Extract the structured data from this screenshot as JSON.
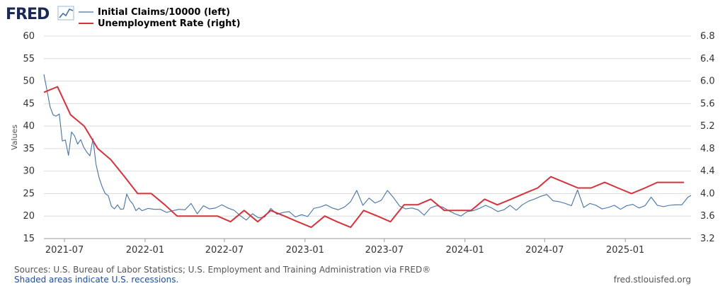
{
  "logo": {
    "text": "FRED"
  },
  "chart_data": {
    "type": "line",
    "xlabel": "",
    "ylabel": "Values",
    "x_ticks": [
      "2021-07",
      "2022-01",
      "2022-07",
      "2023-01",
      "2023-07",
      "2024-01",
      "2024-07",
      "2025-01"
    ],
    "x_range": [
      "2021-05-15",
      "2025-05-31"
    ],
    "yleft": {
      "ticks": [
        "15",
        "20",
        "25",
        "30",
        "35",
        "40",
        "45",
        "50",
        "55",
        "60"
      ],
      "lim": [
        15,
        60
      ]
    },
    "yright": {
      "ticks": [
        "3.2",
        "3.6",
        "4.0",
        "4.4",
        "4.8",
        "5.2",
        "5.6",
        "6.0",
        "6.4",
        "6.8"
      ],
      "lim": [
        3.2,
        6.8
      ]
    },
    "grid": true,
    "legend": "top-left",
    "series": [
      {
        "name": "Initial Claims/10000 (left)",
        "axis": "left",
        "color": "#4572a7",
        "x": [
          "2021-05-15",
          "2021-05-22",
          "2021-05-29",
          "2021-06-05",
          "2021-06-12",
          "2021-06-19",
          "2021-06-26",
          "2021-07-03",
          "2021-07-10",
          "2021-07-17",
          "2021-07-24",
          "2021-07-31",
          "2021-08-07",
          "2021-08-14",
          "2021-08-21",
          "2021-08-28",
          "2021-09-04",
          "2021-09-11",
          "2021-09-18",
          "2021-09-25",
          "2021-10-02",
          "2021-10-09",
          "2021-10-16",
          "2021-10-23",
          "2021-10-30",
          "2021-11-06",
          "2021-11-13",
          "2021-11-20",
          "2021-11-27",
          "2021-12-04",
          "2021-12-11",
          "2021-12-18",
          "2021-12-25",
          "2022-01-08",
          "2022-01-22",
          "2022-02-05",
          "2022-02-19",
          "2022-03-05",
          "2022-03-19",
          "2022-04-02",
          "2022-04-16",
          "2022-04-30",
          "2022-05-14",
          "2022-05-28",
          "2022-06-11",
          "2022-06-25",
          "2022-07-09",
          "2022-07-23",
          "2022-08-06",
          "2022-08-20",
          "2022-09-03",
          "2022-09-17",
          "2022-10-01",
          "2022-10-15",
          "2022-10-29",
          "2022-11-12",
          "2022-11-26",
          "2022-12-10",
          "2022-12-24",
          "2023-01-07",
          "2023-01-21",
          "2023-02-04",
          "2023-02-18",
          "2023-03-04",
          "2023-03-18",
          "2023-04-01",
          "2023-04-15",
          "2023-04-29",
          "2023-05-13",
          "2023-05-27",
          "2023-06-10",
          "2023-06-24",
          "2023-07-08",
          "2023-07-22",
          "2023-08-05",
          "2023-08-19",
          "2023-09-02",
          "2023-09-16",
          "2023-09-30",
          "2023-10-14",
          "2023-10-28",
          "2023-11-11",
          "2023-11-25",
          "2023-12-09",
          "2023-12-23",
          "2024-01-06",
          "2024-01-20",
          "2024-02-03",
          "2024-02-17",
          "2024-03-02",
          "2024-03-16",
          "2024-03-30",
          "2024-04-13",
          "2024-04-27",
          "2024-05-11",
          "2024-05-25",
          "2024-06-08",
          "2024-06-22",
          "2024-07-06",
          "2024-07-20",
          "2024-08-03",
          "2024-08-17",
          "2024-08-31",
          "2024-09-14",
          "2024-09-28",
          "2024-10-12",
          "2024-10-26",
          "2024-11-09",
          "2024-11-23",
          "2024-12-07",
          "2024-12-21",
          "2025-01-04",
          "2025-01-18",
          "2025-02-01",
          "2025-02-15",
          "2025-03-01",
          "2025-03-15",
          "2025-03-29",
          "2025-04-12",
          "2025-04-26",
          "2025-05-10",
          "2025-05-24",
          "2025-05-31"
        ],
        "values": [
          51.5,
          48,
          44.3,
          42.5,
          42.2,
          42.7,
          36.7,
          36.9,
          33.5,
          38.7,
          37.8,
          36,
          37,
          35.3,
          34.2,
          33.4,
          37.2,
          31.5,
          28.5,
          26.5,
          25,
          24.5,
          22.2,
          21.6,
          22.5,
          21.5,
          21.6,
          24.9,
          23.5,
          22.7,
          21.2,
          21.8,
          21.2,
          21.7,
          21.5,
          21.5,
          20.8,
          21.2,
          21.5,
          21.4,
          22.8,
          20.5,
          22.3,
          21.6,
          21.8,
          22.5,
          21.8,
          21.3,
          20.1,
          19.1,
          20.5,
          19.6,
          19.8,
          21.7,
          20.4,
          20.8,
          21,
          19.8,
          20.3,
          19.9,
          21.7,
          22,
          22.5,
          21.8,
          21.4,
          22,
          23.2,
          25.7,
          22.4,
          24,
          22.9,
          23.5,
          25.7,
          24.1,
          22.2,
          21.6,
          21.8,
          21.4,
          20.2,
          21.8,
          22.3,
          22,
          21.2,
          20.5,
          20,
          21,
          21.2,
          21.7,
          22.4,
          21.8,
          21,
          21.4,
          22.4,
          21.3,
          22.5,
          23.3,
          23.8,
          24.4,
          24.8,
          23.4,
          23.2,
          22.8,
          22.3,
          25.8,
          21.9,
          22.8,
          22.4,
          21.6,
          21.9,
          22.4,
          21.5,
          22.3,
          22.6,
          21.8,
          22.3,
          24.2,
          22.4,
          22.1,
          22.4,
          22.5,
          22.5,
          24.2,
          24.6
        ]
      },
      {
        "name": "Unemployment Rate (right)",
        "axis": "right",
        "color": "#d6323c",
        "x": [
          "2021-05-15",
          "2021-06-15",
          "2021-07-15",
          "2021-08-15",
          "2021-09-15",
          "2021-10-15",
          "2021-11-15",
          "2021-12-15",
          "2022-01-15",
          "2022-02-15",
          "2022-03-15",
          "2022-04-15",
          "2022-05-15",
          "2022-06-15",
          "2022-07-15",
          "2022-08-15",
          "2022-09-15",
          "2022-10-15",
          "2022-11-15",
          "2022-12-15",
          "2023-01-15",
          "2023-02-15",
          "2023-03-15",
          "2023-04-15",
          "2023-05-15",
          "2023-06-15",
          "2023-07-15",
          "2023-08-15",
          "2023-09-15",
          "2023-10-15",
          "2023-11-15",
          "2023-12-15",
          "2024-01-15",
          "2024-02-15",
          "2024-03-15",
          "2024-04-15",
          "2024-05-15",
          "2024-06-15",
          "2024-07-15",
          "2024-08-15",
          "2024-09-15",
          "2024-10-15",
          "2024-11-15",
          "2024-12-15",
          "2025-01-15",
          "2025-02-15",
          "2025-03-15",
          "2025-04-15",
          "2025-05-15"
        ],
        "values": [
          5.8,
          5.9,
          5.4,
          5.2,
          4.8,
          4.6,
          4.3,
          4.0,
          4.0,
          3.8,
          3.6,
          3.6,
          3.6,
          3.6,
          3.5,
          3.7,
          3.5,
          3.7,
          3.6,
          3.5,
          3.4,
          3.6,
          3.5,
          3.4,
          3.7,
          3.6,
          3.5,
          3.8,
          3.8,
          3.9,
          3.7,
          3.7,
          3.7,
          3.9,
          3.8,
          3.9,
          4.0,
          4.1,
          4.3,
          4.2,
          4.1,
          4.1,
          4.2,
          4.1,
          4.0,
          4.1,
          4.2,
          4.2,
          4.2
        ]
      }
    ]
  },
  "footer": {
    "sources": "Sources: U.S. Bureau of Labor Statistics; U.S. Employment and Training Administration via FRED®",
    "recessions": "Shaded areas indicate U.S. recessions.",
    "website": "fred.stlouisfed.org"
  }
}
